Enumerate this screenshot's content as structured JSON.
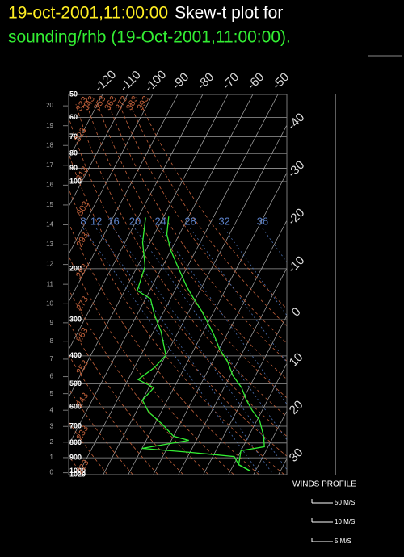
{
  "chart_data": {
    "type": "skewt",
    "title": "19-oct-2001,11:00:00",
    "title_suffix": "Skew-t plot for",
    "subtitle": "sounding/rhb (19-Oct-2001,11:00:00).",
    "ylim": [
      1029,
      50
    ],
    "yticks": [
      50,
      60,
      70,
      80,
      90,
      100,
      200,
      300,
      400,
      500,
      600,
      700,
      800,
      900,
      1000,
      1029
    ],
    "height_ticks": [
      0,
      1,
      2,
      3,
      4,
      5,
      6,
      7,
      8,
      9,
      10,
      11,
      12,
      13,
      14,
      15,
      16,
      17,
      18,
      19,
      20
    ],
    "xticks": [
      -120,
      -110,
      -100,
      -90,
      -80,
      -70,
      -60,
      -50,
      -40,
      -30,
      -20,
      -10,
      0,
      10,
      20,
      30
    ],
    "dry_adiabats": [
      223,
      233,
      243,
      253,
      263,
      273,
      283,
      293,
      303,
      313,
      323,
      333,
      343,
      353,
      363,
      373,
      383,
      393
    ],
    "mixing_ratio_labels": [
      8,
      12,
      16,
      20,
      24,
      28,
      32,
      36
    ],
    "series": [
      {
        "color": "#33ee33",
        "pressure": [
          132,
          152,
          173,
          196,
          231,
          257,
          280,
          308,
          339,
          378,
          419,
          468,
          515,
          568,
          617,
          667,
          758,
          824,
          851,
          950,
          1000
        ],
        "values": [
          -68,
          -65,
          -60,
          -54,
          -46,
          -40,
          -35,
          -30,
          -25,
          -20,
          -14,
          -9,
          -3,
          1.5,
          6,
          11,
          16,
          18.5,
          10,
          12,
          18
        ]
      },
      {
        "color": "#33ee33",
        "pressure": [
          133,
          162,
          196,
          238,
          254,
          289,
          329,
          398,
          439,
          483,
          515,
          568,
          625,
          689,
          758,
          783,
          835,
          862,
          891,
          950,
          1000
        ],
        "values": [
          -77,
          -73,
          -67,
          -65,
          -58,
          -53,
          -47,
          -40,
          -42,
          -46,
          -38,
          -40,
          -35,
          -27,
          -20,
          -13,
          -30,
          -10,
          8.5,
          12,
          18
        ]
      }
    ],
    "wind_legend": {
      "title": "WINDS PROFILE",
      "entries": [
        "50 M/S",
        "10 M/S",
        "5 M/S"
      ]
    }
  }
}
